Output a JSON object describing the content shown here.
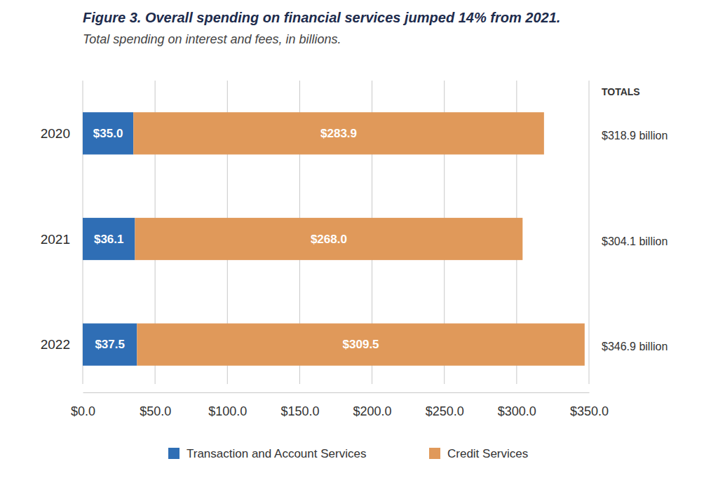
{
  "chart_data": {
    "type": "bar",
    "title": "Figure 3. Overall spending on financial services jumped 14% from 2021.",
    "subtitle": "Total spending on interest and fees, in billions.",
    "orientation": "horizontal",
    "stacked": true,
    "data_labels": true,
    "grid": true,
    "legend": "bottom",
    "categories": [
      "2020",
      "2021",
      "2022"
    ],
    "series": [
      {
        "name": "Transaction and Account Services",
        "color": "#2f6eb5",
        "values": [
          35.0,
          36.1,
          37.5
        ],
        "value_labels": [
          "$35.0",
          "$36.1",
          "$37.5"
        ]
      },
      {
        "name": "Credit Services",
        "color": "#e0995a",
        "values": [
          283.9,
          268.0,
          309.5
        ],
        "value_labels": [
          "$283.9",
          "$268.0",
          "$309.5"
        ]
      }
    ],
    "totals": {
      "title": "TOTALS",
      "values": [
        318.9,
        304.1,
        346.9
      ],
      "value_labels": [
        "$318.9 billion",
        "$304.1 billion",
        "$346.9 billion"
      ]
    },
    "xlim": [
      0,
      350
    ],
    "xticks": [
      {
        "value": 0,
        "label": "$0.0"
      },
      {
        "value": 50,
        "label": "$50.0"
      },
      {
        "value": 100,
        "label": "$100.0"
      },
      {
        "value": 150,
        "label": "$150.0"
      },
      {
        "value": 200,
        "label": "$200.0"
      },
      {
        "value": 250,
        "label": "$250.0"
      },
      {
        "value": 300,
        "label": "$300.0"
      },
      {
        "value": 350,
        "label": "$350.0"
      }
    ]
  }
}
